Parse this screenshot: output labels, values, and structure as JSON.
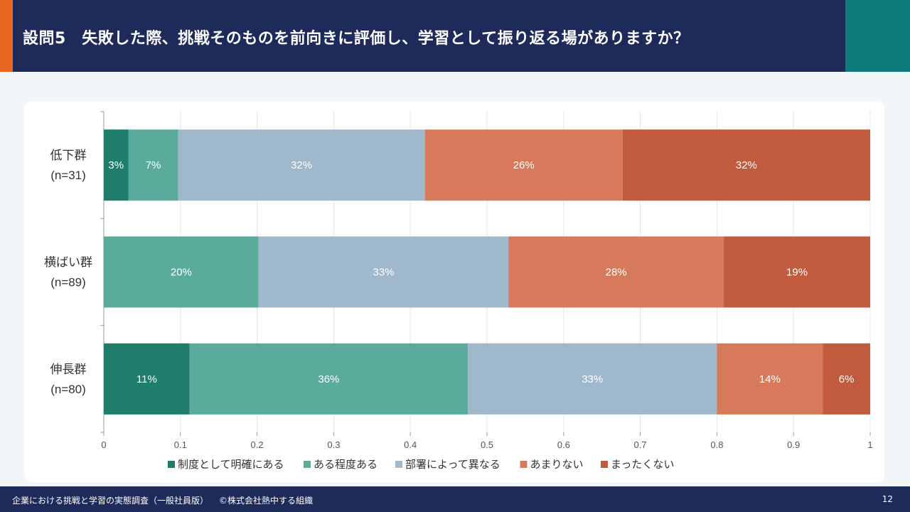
{
  "header": {
    "title": "設問5　失敗した際、挑戦そのものを前向きに評価し、学習として振り返る場がありますか？"
  },
  "footer": {
    "source": "企業における挑戦と学習の実態調査（一般社員版）",
    "copyright": "©株式会社熱中する組織",
    "page": "12"
  },
  "chart_data": {
    "type": "bar",
    "orientation": "horizontal-stacked-100",
    "categories": [
      [
        "低下群",
        "(n=31)"
      ],
      [
        "横ばい群",
        "(n=89)"
      ],
      [
        "伸長群",
        "(n=80)"
      ]
    ],
    "series": [
      {
        "name": "制度として明確にある",
        "color": "#1e7d6b",
        "values": [
          0.032,
          0.0,
          0.112
        ],
        "labels": [
          "3%",
          "0%",
          "11%"
        ]
      },
      {
        "name": "ある程度ある",
        "color": "#5aab9c",
        "values": [
          0.065,
          0.202,
          0.363
        ],
        "labels": [
          "7%",
          "20%",
          "36%"
        ]
      },
      {
        "name": "部署によって異なる",
        "color": "#a0b8cc",
        "values": [
          0.322,
          0.326,
          0.325
        ],
        "labels": [
          "32%",
          "33%",
          "33%"
        ]
      },
      {
        "name": "あまりない",
        "color": "#d77a5b",
        "values": [
          0.258,
          0.281,
          0.138
        ],
        "labels": [
          "26%",
          "28%",
          "14%"
        ]
      },
      {
        "name": "まったくない",
        "color": "#c05b3d",
        "values": [
          0.323,
          0.191,
          0.062
        ],
        "labels": [
          "32%",
          "19%",
          "6%"
        ]
      }
    ],
    "xlim": [
      0,
      1
    ],
    "xticks": [
      "0",
      "0.1",
      "0.2",
      "0.3",
      "0.4",
      "0.5",
      "0.6",
      "0.7",
      "0.8",
      "0.9",
      "1"
    ],
    "legend": "bottom",
    "grid": true
  }
}
